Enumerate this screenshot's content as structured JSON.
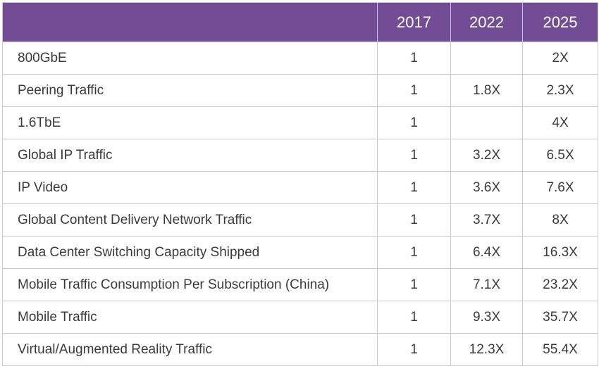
{
  "table": {
    "columns": [
      "2017",
      "2022",
      "2025"
    ],
    "rows": [
      [
        "800GbE",
        1,
        null,
        "2X"
      ],
      [
        "Peering Traffic",
        1,
        "1.8X",
        "2.3X"
      ],
      [
        "1.6TbE",
        1,
        null,
        "4X"
      ],
      [
        "Global IP Traffic",
        1,
        "3.2X",
        "6.5X"
      ],
      [
        "IP Video",
        1,
        "3.6X",
        "7.6X"
      ],
      [
        "Global Content Delivery Network Traffic",
        1,
        "3.7X",
        "8X"
      ],
      [
        "Data Center Switching Capacity Shipped",
        1,
        "6.4X",
        "16.3X"
      ],
      [
        "Mobile Traffic Consumption Per Subscription (China)",
        1,
        "7.1X",
        "23.2X"
      ],
      [
        "Mobile Traffic",
        1,
        "9.3X",
        "35.7X"
      ],
      [
        "Virtual/Augmented Reality Traffic",
        1,
        "12.3X",
        "55.4X"
      ]
    ]
  }
}
